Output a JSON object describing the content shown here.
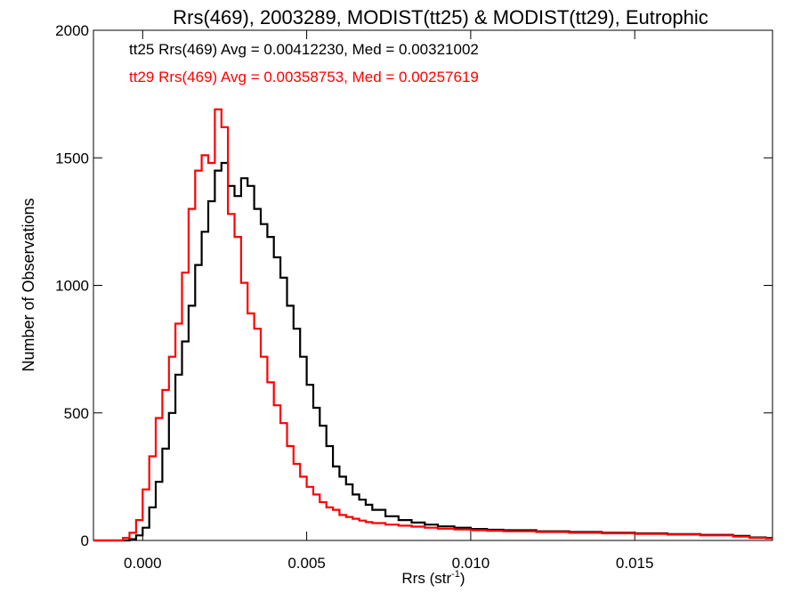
{
  "chart_data": {
    "type": "line",
    "title": "Rrs(469), 2003289, MODIST(tt25) & MODIST(tt29), Eutrophic",
    "xlabel": "Rrs (str",
    "xlabel_sup": "-1",
    "xlabel_end": ")",
    "ylabel": "Number of Observations",
    "xlim": [
      -0.0015,
      0.0192
    ],
    "ylim": [
      0,
      2000
    ],
    "xticks": [
      0.0,
      0.005,
      0.01,
      0.015
    ],
    "xtick_labels": [
      "0.000",
      "0.005",
      "0.010",
      "0.015"
    ],
    "yticks": [
      0,
      500,
      1000,
      1500,
      2000
    ],
    "ytick_labels": [
      "0",
      "500",
      "1000",
      "1500",
      "2000"
    ],
    "grid": false,
    "legend_placement": "top-left",
    "series": [
      {
        "name": "tt25",
        "annotation": "tt25 Rrs(469) Avg = 0.00412230, Med = 0.00321002",
        "color": "#000000",
        "step": "post",
        "x": [
          -0.0015,
          -0.0004,
          -0.0002,
          0.0,
          0.0002,
          0.0004,
          0.0006,
          0.0008,
          0.001,
          0.0012,
          0.0014,
          0.0016,
          0.0018,
          0.002,
          0.0022,
          0.0024,
          0.0026,
          0.0028,
          0.003,
          0.0032,
          0.0034,
          0.0036,
          0.0038,
          0.004,
          0.0042,
          0.0044,
          0.0046,
          0.0048,
          0.005,
          0.0052,
          0.0054,
          0.0056,
          0.0058,
          0.006,
          0.0062,
          0.0064,
          0.0066,
          0.0068,
          0.007,
          0.0074,
          0.0078,
          0.0082,
          0.0086,
          0.009,
          0.0095,
          0.01,
          0.0105,
          0.011,
          0.012,
          0.013,
          0.014,
          0.015,
          0.016,
          0.017,
          0.018,
          0.0185,
          0.019
        ],
        "values": [
          0,
          5,
          20,
          50,
          130,
          230,
          360,
          500,
          650,
          780,
          920,
          1080,
          1210,
          1330,
          1450,
          1480,
          1390,
          1350,
          1420,
          1390,
          1300,
          1240,
          1190,
          1110,
          1030,
          920,
          830,
          720,
          610,
          520,
          450,
          370,
          290,
          250,
          220,
          180,
          160,
          140,
          120,
          95,
          80,
          70,
          62,
          55,
          50,
          45,
          42,
          40,
          36,
          33,
          30,
          28,
          25,
          22,
          18,
          12,
          10
        ]
      },
      {
        "name": "tt29",
        "annotation": "tt29 Rrs(469) Avg = 0.00358753, Med = 0.00257619",
        "color": "#ff0000",
        "step": "post",
        "x": [
          -0.0015,
          -0.0006,
          -0.0004,
          -0.0002,
          0.0,
          0.0002,
          0.0004,
          0.0006,
          0.0008,
          0.001,
          0.0012,
          0.0014,
          0.0016,
          0.0018,
          0.002,
          0.0022,
          0.0024,
          0.0026,
          0.0028,
          0.003,
          0.0032,
          0.0034,
          0.0036,
          0.0038,
          0.004,
          0.0042,
          0.0044,
          0.0046,
          0.0048,
          0.005,
          0.0052,
          0.0054,
          0.0056,
          0.0058,
          0.006,
          0.0062,
          0.0064,
          0.0066,
          0.0068,
          0.007,
          0.0074,
          0.0078,
          0.0082,
          0.0086,
          0.009,
          0.0095,
          0.01,
          0.0105,
          0.011,
          0.012,
          0.013,
          0.014,
          0.015,
          0.016,
          0.017,
          0.018,
          0.0185,
          0.019
        ],
        "values": [
          0,
          10,
          30,
          80,
          200,
          330,
          480,
          590,
          720,
          850,
          1050,
          1300,
          1450,
          1510,
          1480,
          1690,
          1620,
          1280,
          1190,
          1010,
          890,
          830,
          720,
          620,
          530,
          460,
          370,
          300,
          250,
          210,
          180,
          150,
          130,
          120,
          100,
          92,
          85,
          78,
          72,
          68,
          62,
          58,
          54,
          50,
          46,
          43,
          40,
          38,
          36,
          33,
          30,
          28,
          26,
          23,
          20,
          15,
          10,
          8
        ]
      }
    ]
  }
}
